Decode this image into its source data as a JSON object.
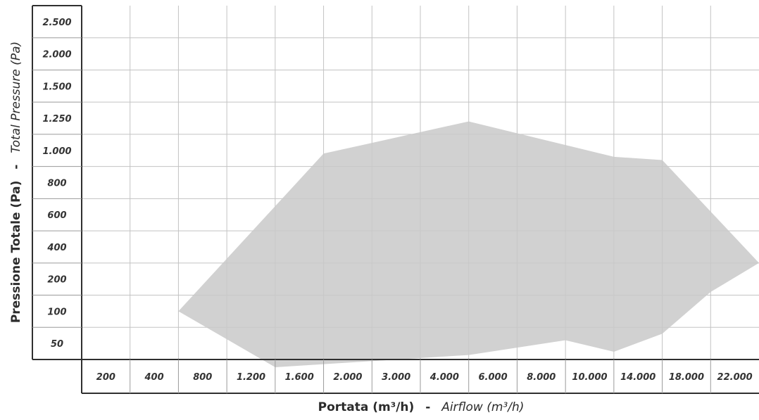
{
  "chart_data": {
    "type": "area",
    "title": "",
    "xlabel": {
      "main": "Portata (m³/h)",
      "separator": "-",
      "italic": "Airflow (m³/h)"
    },
    "ylabel": {
      "main": "Pressione Totale (Pa)",
      "separator": "-",
      "italic": "Total Pressure (Pa)"
    },
    "x_ticks": [
      "200",
      "400",
      "800",
      "1.200",
      "1.600",
      "2.000",
      "3.000",
      "4.000",
      "6.000",
      "8.000",
      "10.000",
      "14.000",
      "18.000",
      "22.000"
    ],
    "y_ticks": [
      "2.500",
      "2.000",
      "1.500",
      "1.250",
      "1.000",
      "800",
      "600",
      "400",
      "200",
      "100",
      "50"
    ],
    "x_scale": "categorical (non-linear)",
    "y_scale": "categorical (non-linear)",
    "grid": true,
    "legend": "none",
    "colors": {
      "area_fill": "#c9c9c9",
      "grid": "#c3c3c3",
      "frame": "#2f2f2f",
      "text": "#333333"
    },
    "series": [
      {
        "region_boundary": [
          {
            "x": 400,
            "y": 150
          },
          {
            "x": 1600,
            "y": 1100
          },
          {
            "x": 4000,
            "y": 1350
          },
          {
            "x": 10000,
            "y": 1075
          },
          {
            "x": 14000,
            "y": 1050
          },
          {
            "x": 22000,
            "y": 400
          },
          {
            "x": 18000,
            "y": 220
          },
          {
            "x": 14000,
            "y": 90
          },
          {
            "x": 10000,
            "y": 62
          },
          {
            "x": 8000,
            "y": 80
          },
          {
            "x": 4000,
            "y": 57
          },
          {
            "x": 1200,
            "y": 38
          }
        ]
      }
    ]
  }
}
